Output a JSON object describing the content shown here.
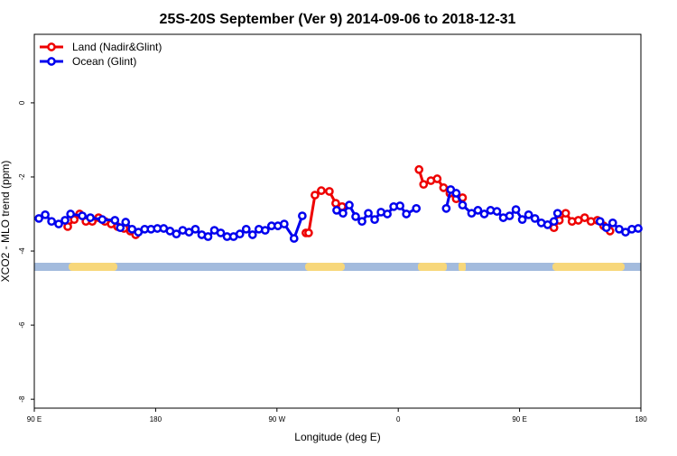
{
  "chart_data": {
    "type": "line",
    "title": "25S-20S September (Ver 9)   2014-09-06 to 2018-12-31",
    "x_label": "Longitude (deg E)",
    "y_label": "XCO2 - MLO trend (ppm)",
    "xlim": [
      90,
      540
    ],
    "xticks": [
      {
        "value": 90,
        "label": "90 E"
      },
      180,
      {
        "value": 270,
        "label": "90 W"
      },
      {
        "value": 360,
        "label": "0"
      },
      {
        "value": 450,
        "label": "90 E"
      },
      {
        "value": 540,
        "label": "180"
      }
    ],
    "ylim": [
      -8.24,
      1.85
    ],
    "yticks": [
      -8,
      -6,
      -4,
      -2,
      0
    ],
    "legend": "top-left",
    "series": [
      {
        "name": "Land (Nadir&Glint)",
        "color": "#ee0000",
        "x": [
          114.8,
          119.6,
          123.6,
          128.3,
          133.0,
          137.7,
          142.4,
          147.1,
          151.8,
          156.5,
          161.2,
          165.2,
          null,
          291.5,
          293.5,
          298.2,
          302.9,
          308.9,
          313.6,
          318.3,
          null,
          375.4,
          378.8,
          384.2,
          388.9,
          393.6,
          398.3,
          403.0,
          407.7,
          null,
          475.5,
          479.5,
          484.2,
          488.9,
          493.6,
          498.3,
          503.0,
          507.7,
          512.4,
          517.1
        ],
        "values": [
          -3.34,
          -3.15,
          -3.0,
          -3.2,
          -3.2,
          -3.1,
          -3.2,
          -3.27,
          -3.34,
          -3.39,
          -3.46,
          -3.56,
          null,
          -3.51,
          -3.51,
          -2.49,
          -2.37,
          -2.39,
          -2.71,
          -2.8,
          null,
          -1.8,
          -2.2,
          -2.1,
          -2.05,
          -2.29,
          -2.44,
          -2.59,
          -2.56,
          null,
          -3.37,
          -3.17,
          -2.98,
          -3.2,
          -3.17,
          -3.1,
          -3.2,
          -3.17,
          -3.32,
          -3.46
        ]
      },
      {
        "name": "Ocean (Glint)",
        "color": "#0000ee",
        "x": [
          93.4,
          98.1,
          102.8,
          108.1,
          112.8,
          116.9,
          125.6,
          131.6,
          140.4,
          149.8,
          153.8,
          157.8,
          162.5,
          167.2,
          171.9,
          176.6,
          181.3,
          186.0,
          190.7,
          195.4,
          200.1,
          204.8,
          209.5,
          214.2,
          218.9,
          223.6,
          228.3,
          233.0,
          237.8,
          242.5,
          247.2,
          251.9,
          256.6,
          261.3,
          266.0,
          270.7,
          275.4,
          282.7,
          288.8,
          null,
          314.3,
          319.0,
          323.7,
          328.4,
          333.1,
          337.8,
          342.5,
          347.2,
          351.9,
          356.6,
          361.3,
          366.0,
          373.4,
          null,
          395.6,
          398.9,
          403.0,
          407.7,
          414.4,
          419.1,
          423.8,
          428.5,
          433.2,
          437.9,
          442.6,
          447.3,
          452.0,
          456.7,
          461.4,
          466.1,
          470.8,
          475.5,
          478.2,
          null,
          509.7,
          514.4,
          519.1,
          523.9,
          528.6,
          533.3,
          538.0
        ],
        "values": [
          -3.12,
          -3.02,
          -3.2,
          -3.27,
          -3.17,
          -3.0,
          -3.05,
          -3.1,
          -3.15,
          -3.17,
          -3.37,
          -3.22,
          -3.41,
          -3.49,
          -3.41,
          -3.41,
          -3.39,
          -3.39,
          -3.46,
          -3.54,
          -3.44,
          -3.49,
          -3.41,
          -3.56,
          -3.61,
          -3.44,
          -3.51,
          -3.61,
          -3.61,
          -3.54,
          -3.41,
          -3.56,
          -3.41,
          -3.44,
          -3.32,
          -3.32,
          -3.27,
          -3.66,
          -3.05,
          null,
          -2.9,
          -2.98,
          -2.76,
          -3.07,
          -3.2,
          -2.98,
          -3.15,
          -2.95,
          -3.0,
          -2.8,
          -2.78,
          -3.0,
          -2.85,
          null,
          -2.85,
          -2.34,
          -2.44,
          -2.76,
          -2.98,
          -2.9,
          -3.0,
          -2.9,
          -2.93,
          -3.1,
          -3.05,
          -2.88,
          -3.15,
          -3.02,
          -3.12,
          -3.24,
          -3.29,
          -3.2,
          -2.98,
          null,
          -3.2,
          -3.37,
          -3.24,
          -3.41,
          -3.49,
          -3.41,
          -3.39
        ]
      }
    ]
  }
}
